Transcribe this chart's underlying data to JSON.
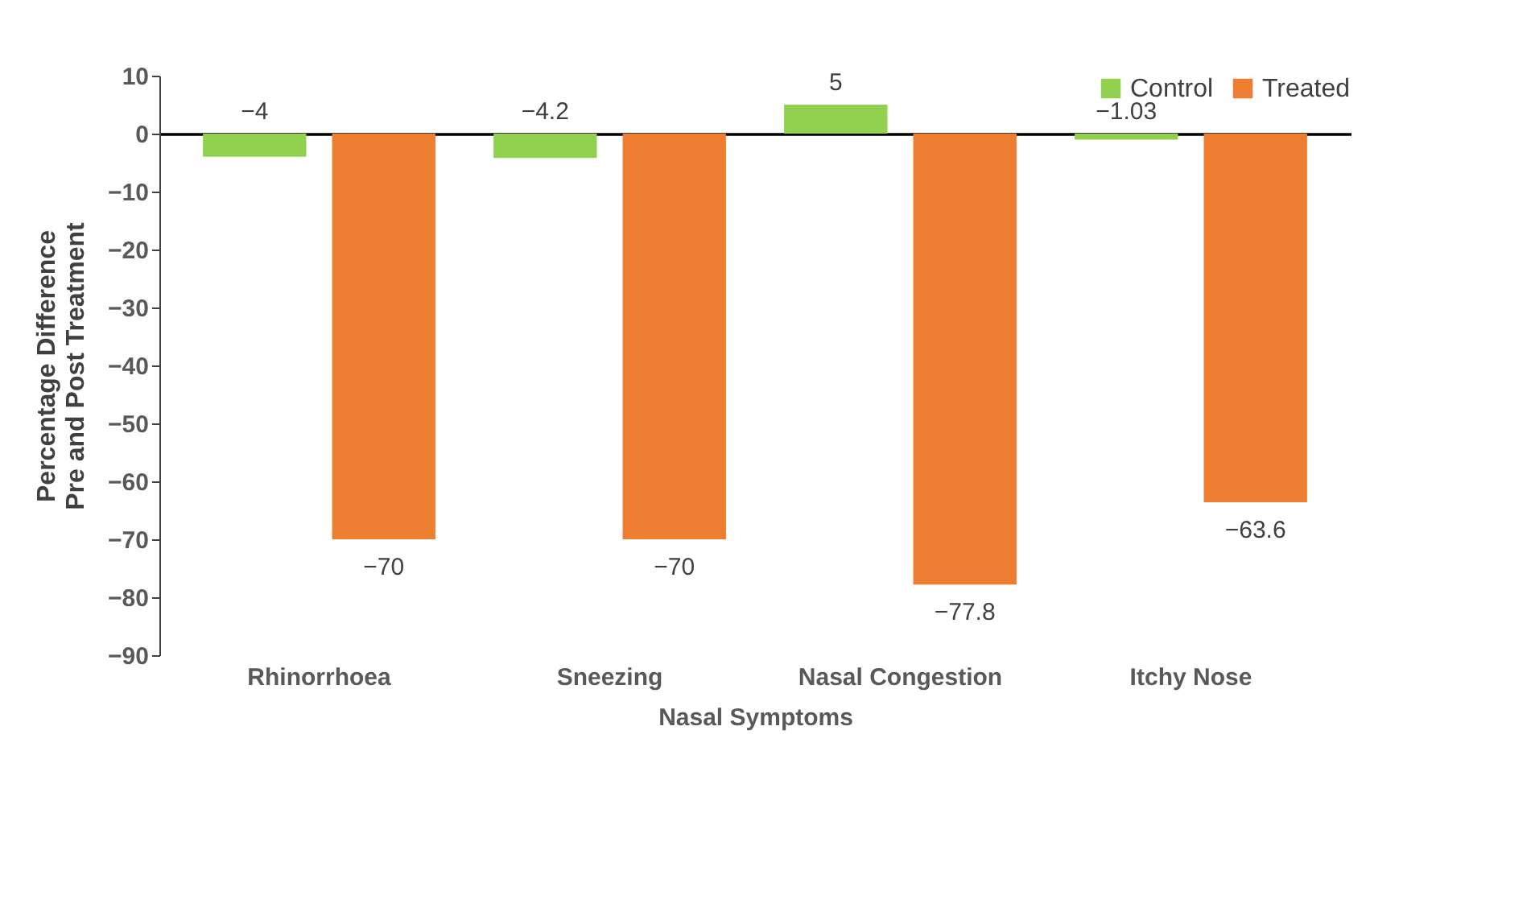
{
  "chart_data": {
    "type": "bar",
    "xlabel": "Nasal Symptoms",
    "ylabel": "Percentage Difference\nPre and Post Treatment",
    "categories": [
      "Rhinorrhoea",
      "Sneezing",
      "Nasal Congestion",
      "Itchy Nose"
    ],
    "series": [
      {
        "name": "Control",
        "color": "#92d050",
        "values": [
          -4,
          -4.2,
          5,
          -1.03
        ]
      },
      {
        "name": "Treated",
        "color": "#ed7d31",
        "values": [
          -70,
          -70,
          -77.8,
          -63.6
        ]
      }
    ],
    "ylim": [
      -90,
      10
    ],
    "yticks": [
      -90,
      -80,
      -70,
      -60,
      -50,
      -40,
      -30,
      -20,
      -10,
      0,
      10
    ],
    "data_labels": true,
    "legend": "top right"
  }
}
